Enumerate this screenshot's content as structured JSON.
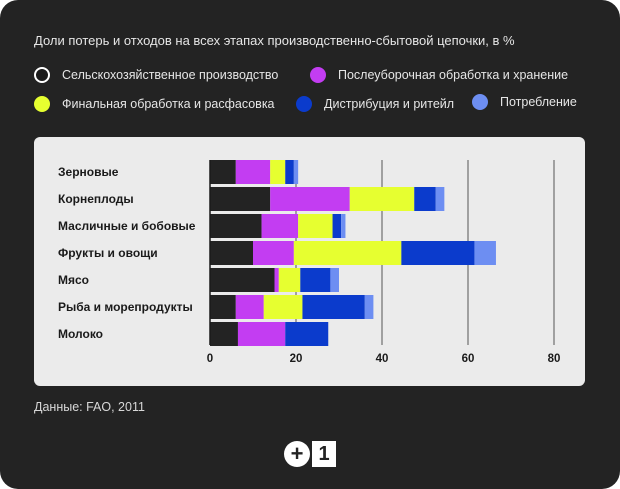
{
  "title": "Доли потерь и отходов на всех этапах производственно-сбытовой цепочки, в %",
  "source": "Данные: FAO, 2011",
  "logo": {
    "plus": "+",
    "one": "1"
  },
  "legend": [
    {
      "label": "Сельскохозяйственное производство",
      "color": "#232323"
    },
    {
      "label": "Послеуборочная обработка и хранение",
      "color": "#c33df2"
    },
    {
      "label": "Финальная обработка и расфасовка",
      "color": "#e6ff30"
    },
    {
      "label": "Дистрибуция и ритейл",
      "color": "#0b3bcc"
    },
    {
      "label": "Потребление",
      "color": "#6d8ef2"
    }
  ],
  "chart_data": {
    "type": "bar",
    "orientation": "horizontal",
    "stacked": true,
    "title": "Доли потерь и отходов на всех этапах производственно-сбытовой цепочки, в %",
    "categories": [
      "Зерновые",
      "Корнеплоды",
      "Масличные и бобовые",
      "Фрукты и овощи",
      "Мясо",
      "Рыба и морепродукты",
      "Молоко"
    ],
    "series": [
      {
        "name": "Сельскохозяйственное производство",
        "color": "#232323",
        "values": [
          6,
          14,
          12,
          10,
          15,
          6,
          6.5
        ]
      },
      {
        "name": "Послеуборочная обработка и хранение",
        "color": "#c33df2",
        "values": [
          8,
          18.5,
          8.5,
          9.5,
          1,
          6.5,
          11
        ]
      },
      {
        "name": "Финальная обработка и расфасовка",
        "color": "#e6ff30",
        "values": [
          3.5,
          15,
          8,
          25,
          5,
          9,
          0
        ]
      },
      {
        "name": "Дистрибуция и ритейл",
        "color": "#0b3bcc",
        "values": [
          2,
          5,
          2,
          17,
          7,
          14.5,
          10
        ]
      },
      {
        "name": "Потребление",
        "color": "#6d8ef2",
        "values": [
          1,
          2,
          1,
          5,
          2,
          2,
          0
        ]
      }
    ],
    "xlim": [
      0,
      80
    ],
    "xticks": [
      0,
      20,
      40,
      60,
      80
    ],
    "grid": true,
    "legend_position": "top"
  }
}
